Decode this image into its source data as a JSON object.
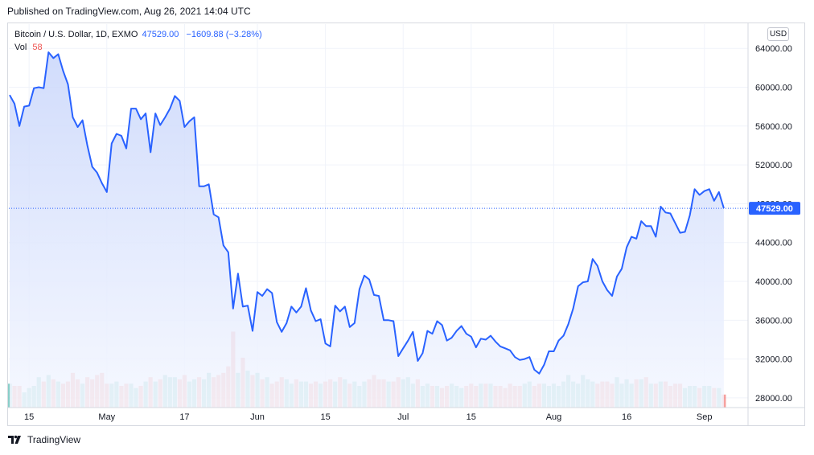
{
  "header": {
    "published": "Published on TradingView.com, Aug 26, 2021 14:04 UTC"
  },
  "legend": {
    "symbol": "Bitcoin / U.S. Dollar, 1D, EXMO",
    "last_value": "47529.00",
    "change": "−1609.88 (−3.28%)",
    "vol_label": "Vol",
    "vol_value": "58"
  },
  "currency_button": "USD",
  "footer": {
    "brand": "TradingView",
    "logo_icon": "tradingview-logo-icon"
  },
  "colors": {
    "line": "#2962ff",
    "area_top": "#c9d6fb",
    "area_bottom": "#f4f7ff",
    "vol_up": "#26a69a",
    "vol_down": "#ef5350",
    "last_price_label": "#2962ff"
  },
  "chart_data": {
    "type": "area",
    "title": "Bitcoin / U.S. Dollar, 1D, EXMO",
    "x_ticks": [
      {
        "label": "15",
        "day": 4
      },
      {
        "label": "May",
        "day": 20
      },
      {
        "label": "17",
        "day": 36
      },
      {
        "label": "Jun",
        "day": 51
      },
      {
        "label": "15",
        "day": 65
      },
      {
        "label": "Jul",
        "day": 81
      },
      {
        "label": "15",
        "day": 95
      },
      {
        "label": "Aug",
        "day": 112
      },
      {
        "label": "16",
        "day": 127
      },
      {
        "label": "Sep",
        "day": 143
      }
    ],
    "y_ticks": [
      28000,
      32000,
      36000,
      40000,
      44000,
      48000,
      52000,
      56000,
      60000,
      64000
    ],
    "y_tick_labels": [
      "28000.00",
      "32000.00",
      "36000.00",
      "40000.00",
      "44000.00",
      "48000.00",
      "52000.00",
      "56000.00",
      "60000.00",
      "64000.00"
    ],
    "ylim": [
      27000,
      66500
    ],
    "last_price": 47529.0,
    "last_price_label": "47529.00",
    "grid": true,
    "series": [
      {
        "values": [
          59200,
          58300,
          56000,
          58000,
          58100,
          59900,
          60000,
          59900,
          63600,
          63000,
          63400,
          61700,
          60300,
          56900,
          55900,
          56600,
          54000,
          51800,
          51200,
          50100,
          49200,
          54200,
          55200,
          55000,
          53700,
          57800,
          57800,
          56700,
          57300,
          53300,
          57300,
          56100,
          56900,
          57800,
          59100,
          58600,
          55900,
          56500,
          56900,
          49800,
          49800,
          50000,
          46900,
          46600,
          43700,
          43000,
          37200,
          40800,
          37400,
          37500,
          34900,
          38900,
          38500,
          39200,
          38800,
          35800,
          34800,
          35700,
          37400,
          36800,
          37400,
          39300,
          37000,
          35900,
          36100,
          33600,
          33300,
          37500,
          36900,
          37400,
          35300,
          35700,
          39200,
          40600,
          40200,
          38600,
          38500,
          36000,
          36000,
          35900,
          32300,
          33100,
          33900,
          34800,
          31800,
          32600,
          34900,
          34600,
          35900,
          35500,
          33900,
          34200,
          34900,
          35400,
          34600,
          34300,
          33200,
          34100,
          34000,
          34400,
          33800,
          33300,
          33100,
          32900,
          32200,
          31900,
          32000,
          32200,
          30900,
          30500,
          31400,
          32800,
          32800,
          33900,
          34400,
          35600,
          37200,
          39500,
          39900,
          40000,
          42300,
          41600,
          40000,
          39100,
          38500,
          40500,
          41300,
          43500,
          44600,
          44400,
          46200,
          45700,
          45700,
          44600,
          47700,
          47100,
          47000,
          46000,
          45000,
          45100,
          46800,
          49500,
          48900,
          49300,
          49500,
          48300,
          49200,
          47529
        ],
        "volumes": [
          31,
          30,
          30,
          27,
          29,
          30,
          34,
          32,
          35,
          33,
          32,
          31,
          32,
          36,
          33,
          31,
          34,
          33,
          35,
          36,
          31,
          31,
          32,
          30,
          31,
          31,
          29,
          30,
          32,
          34,
          32,
          33,
          35,
          34,
          34,
          33,
          35,
          32,
          33,
          34,
          33,
          36,
          34,
          35,
          36,
          39,
          55,
          36,
          43,
          37,
          35,
          36,
          33,
          34,
          31,
          32,
          34,
          33,
          31,
          33,
          32,
          32,
          31,
          32,
          31,
          32,
          33,
          32,
          34,
          33,
          31,
          32,
          30,
          32,
          33,
          35,
          33,
          33,
          32,
          32,
          34,
          33,
          34,
          31,
          33,
          30,
          31,
          30,
          30,
          29,
          30,
          31,
          30,
          29,
          30,
          31,
          30,
          31,
          31,
          31,
          30,
          30,
          29,
          31,
          30,
          30,
          31,
          32,
          30,
          31,
          31,
          30,
          31,
          30,
          32,
          35,
          32,
          31,
          35,
          33,
          32,
          31,
          32,
          32,
          31,
          34,
          31,
          33,
          31,
          33,
          33,
          34,
          31,
          31,
          32,
          32,
          30,
          31,
          31,
          29,
          30,
          30,
          29,
          30,
          30,
          29,
          29,
          26
        ]
      }
    ]
  }
}
